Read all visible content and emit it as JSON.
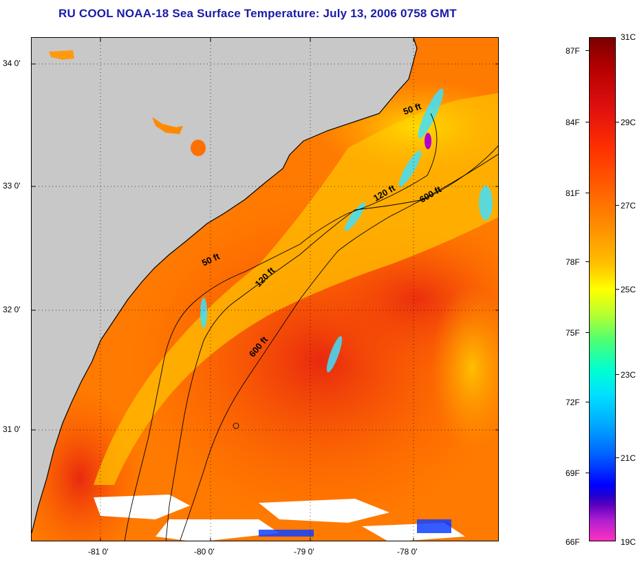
{
  "title": "RU COOL  NOAA-18  Sea Surface Temperature:  July 13, 2006 0758 GMT",
  "map": {
    "lon_labels": [
      "-81 0'",
      "-80 0'",
      "-79 0'",
      "-78 0'"
    ],
    "lat_labels": [
      "34 0'",
      "33 0'",
      "32 0'",
      "31 0'"
    ],
    "contours": [
      {
        "label": "50 ft",
        "name": "contour-50ft"
      },
      {
        "label": "120 ft",
        "name": "contour-120ft"
      },
      {
        "label": "600 ft",
        "name": "contour-600ft"
      }
    ],
    "contour_labels_shown": [
      "50 ft",
      "120 ft",
      "600 ft",
      "50 ft",
      "120 ft",
      "600 ft"
    ],
    "colors": {
      "land": "#c8c8c8",
      "warm_water": "#ff6a00",
      "hot_water": "#ee2a10",
      "cool_water": "#ffd000",
      "cloud": "#ffffff"
    }
  },
  "colorbar": {
    "fahrenheit": [
      "87F",
      "84F",
      "81F",
      "78F",
      "75F",
      "72F",
      "69F",
      "66F"
    ],
    "celsius": [
      "31C",
      "29C",
      "27C",
      "25C",
      "23C",
      "21C",
      "19C"
    ]
  }
}
